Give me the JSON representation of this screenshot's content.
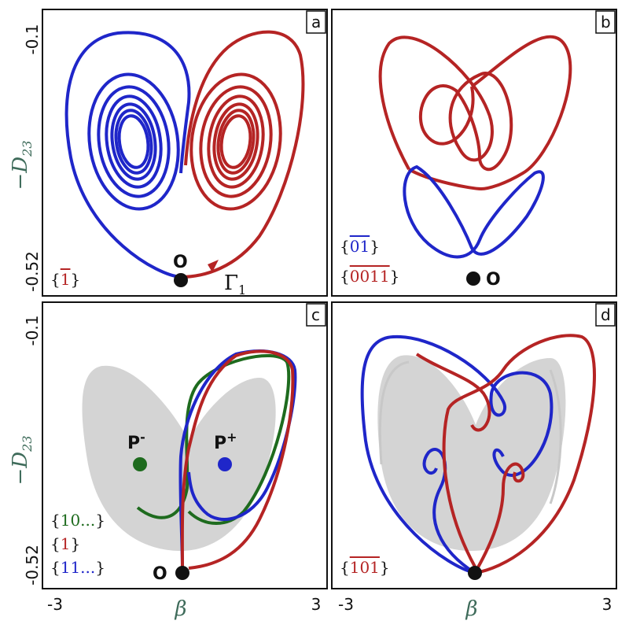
{
  "colors": {
    "red": "#b52424",
    "blue": "#1f26c9",
    "green": "#1e6b1e",
    "gray": "#d4d4d4",
    "frame": "#111111"
  },
  "axes": {
    "x_label": "β",
    "y_label": "−D",
    "y_label_sub": "23",
    "x_ticks": [
      "-3",
      "3"
    ],
    "y_ticks": [
      "-0.1",
      "-0.52"
    ]
  },
  "chart_data": [
    {
      "type": "line",
      "panel": "a",
      "xlim": [
        -3,
        3
      ],
      "ylim": [
        -0.52,
        -0.1
      ],
      "series": [
        {
          "name": "",
          "color": "blue",
          "description_shown": "spiral orbit around left focus"
        },
        {
          "name": "",
          "color": "red",
          "description_shown": "spiral orbit around right focus"
        }
      ],
      "annotations": {
        "origin": "O",
        "orbit": "Γ",
        "orbit_sub": "1"
      },
      "code": {
        "open": "{",
        "symbol": "1",
        "close": "}"
      }
    },
    {
      "type": "line",
      "panel": "b",
      "xlim": [
        -3,
        3
      ],
      "ylim": [
        -0.52,
        -0.1
      ],
      "annotations": {
        "origin": "O"
      },
      "codes": [
        {
          "open": "{",
          "symbol": "01",
          "close": "}",
          "color": "blue"
        },
        {
          "open": "{",
          "symbol": "0011",
          "close": "}",
          "color": "red"
        }
      ]
    },
    {
      "type": "line",
      "panel": "c",
      "xlim": [
        -3,
        3
      ],
      "ylim": [
        -0.52,
        -0.1
      ],
      "annotations": {
        "origin": "O",
        "p_minus": "P",
        "p_minus_sup": "-",
        "p_plus": "P",
        "p_plus_sup": "+"
      },
      "codes": [
        {
          "open": "{",
          "symbol": "10...",
          "close": "}",
          "color": "green"
        },
        {
          "open": "{",
          "symbol": "1",
          "close": "}",
          "color": "red"
        },
        {
          "open": "{",
          "symbol": "11...",
          "close": "}",
          "color": "blue"
        }
      ]
    },
    {
      "type": "line",
      "panel": "d",
      "xlim": [
        -3,
        3
      ],
      "ylim": [
        -0.52,
        -0.1
      ],
      "code": {
        "open": "{",
        "symbol": "101",
        "close": "}",
        "color": "red"
      }
    }
  ]
}
